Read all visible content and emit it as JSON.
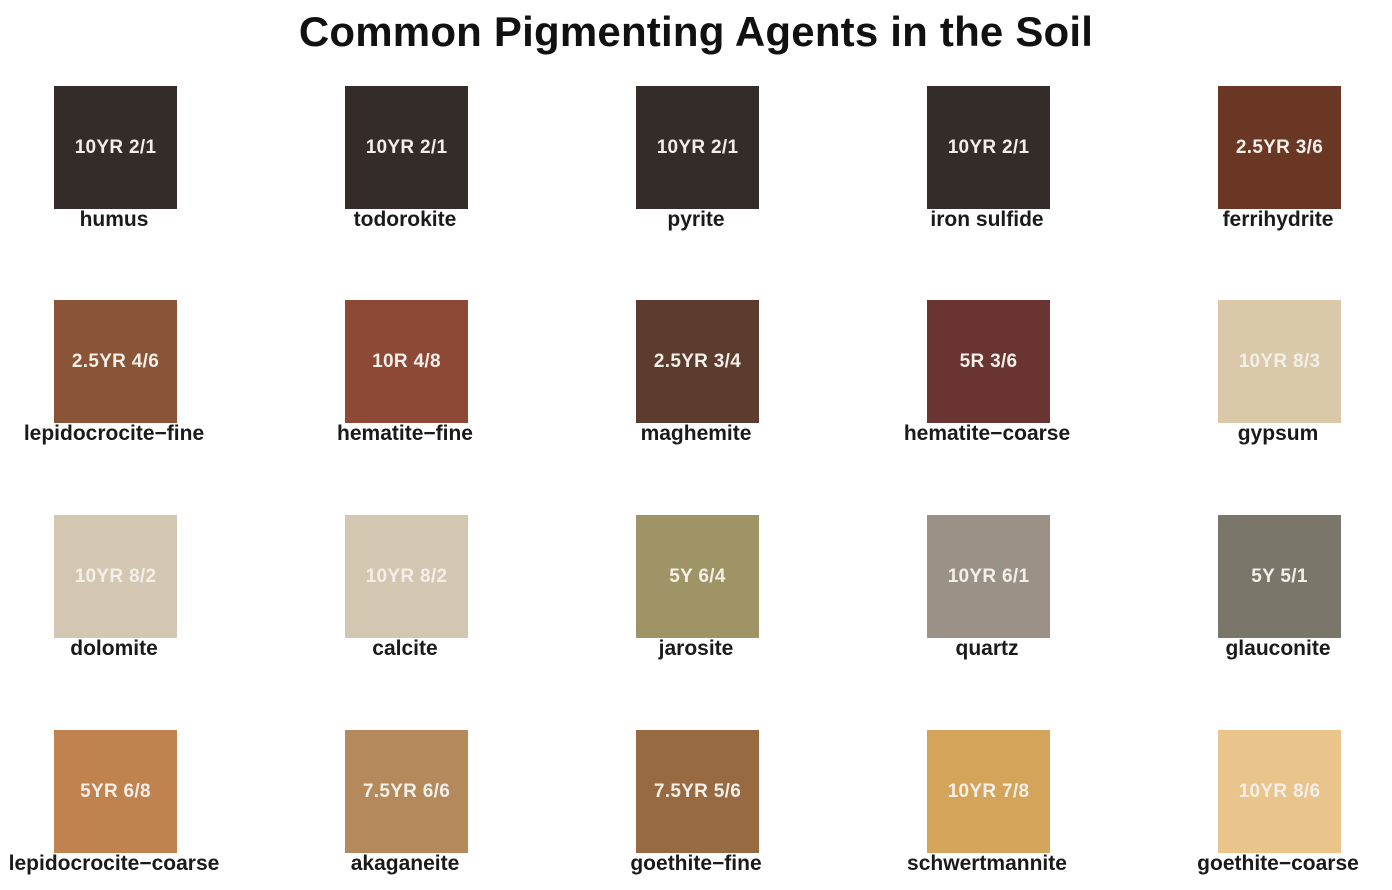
{
  "title": "Common Pigmenting Agents in the Soil",
  "pigments": [
    {
      "code": "10YR 2/1",
      "name": "humus",
      "color": "#342c28"
    },
    {
      "code": "10YR 2/1",
      "name": "todorokite",
      "color": "#342c28"
    },
    {
      "code": "10YR 2/1",
      "name": "pyrite",
      "color": "#342c28"
    },
    {
      "code": "10YR 2/1",
      "name": "iron sulfide",
      "color": "#342c28"
    },
    {
      "code": "2.5YR 3/6",
      "name": "ferrihydrite",
      "color": "#6a3724"
    },
    {
      "code": "2.5YR 4/6",
      "name": "lepidocrocite−fine",
      "color": "#8a5436"
    },
    {
      "code": "10R 4/8",
      "name": "hematite−fine",
      "color": "#8e4936"
    },
    {
      "code": "2.5YR 3/4",
      "name": "maghemite",
      "color": "#5d3b2e"
    },
    {
      "code": "5R 3/6",
      "name": "hematite−coarse",
      "color": "#6a3432"
    },
    {
      "code": "10YR 8/3",
      "name": "gypsum",
      "color": "#dac9a9"
    },
    {
      "code": "10YR 8/2",
      "name": "dolomite",
      "color": "#d4c7b2"
    },
    {
      "code": "10YR 8/2",
      "name": "calcite",
      "color": "#d4c7b2"
    },
    {
      "code": "5Y 6/4",
      "name": "jarosite",
      "color": "#9f9465"
    },
    {
      "code": "10YR 6/1",
      "name": "quartz",
      "color": "#9b9186"
    },
    {
      "code": "5Y 5/1",
      "name": "glauconite",
      "color": "#7a766a"
    },
    {
      "code": "5YR 6/8",
      "name": "lepidocrocite−coarse",
      "color": "#c08350"
    },
    {
      "code": "7.5YR 6/6",
      "name": "akaganeite",
      "color": "#b4895c"
    },
    {
      "code": "7.5YR 5/6",
      "name": "goethite−fine",
      "color": "#976a42"
    },
    {
      "code": "10YR 7/8",
      "name": "schwertmannite",
      "color": "#d3a45a"
    },
    {
      "code": "10YR 8/6",
      "name": "goethite−coarse",
      "color": "#e9c48b"
    }
  ]
}
